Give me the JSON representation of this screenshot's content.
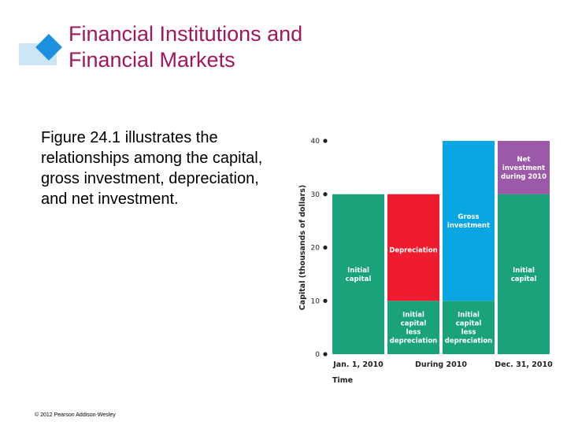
{
  "slide": {
    "title_lines": [
      "Financial Institutions and",
      "Financial Markets"
    ],
    "body_text": "Figure 24.1 illustrates the relationships among the capital, gross investment, depreciation, and net investment.",
    "footer": "© 2012 Pearson Addison-Wesley",
    "colors": {
      "title": "#a0175a",
      "accent_square": "#1e90e0",
      "accent_bar": "#cce6f6"
    }
  },
  "chart_data": {
    "type": "bar",
    "stacked": true,
    "categories": [
      "Jan. 1, 2010",
      "During 2010",
      "Dec. 31, 2010"
    ],
    "xlabel": "Time",
    "ylabel": "Capital (thousands of dollars)",
    "ylim": [
      0,
      40
    ],
    "yticks": [
      0,
      10,
      20,
      30,
      40
    ],
    "bars": [
      {
        "category": "Jan. 1, 2010",
        "segments": [
          {
            "label_lines": [
              "Initial",
              "capital"
            ],
            "from": 0,
            "to": 30,
            "color": "#1aa37a"
          }
        ]
      },
      {
        "category": "During 2010",
        "segments": [
          {
            "label_lines": [
              "Initial",
              "capital",
              "less",
              "depreciation"
            ],
            "from": 0,
            "to": 10,
            "color": "#1aa37a"
          },
          {
            "label_lines": [
              "Depreciation"
            ],
            "from": 10,
            "to": 30,
            "color": "#ee1c2e"
          }
        ]
      },
      {
        "category": "During 2010",
        "segments": [
          {
            "label_lines": [
              "Initial",
              "capital",
              "less",
              "depreciation"
            ],
            "from": 0,
            "to": 10,
            "color": "#1aa37a"
          },
          {
            "label_lines": [
              "Gross",
              "investment"
            ],
            "from": 10,
            "to": 40,
            "color": "#0aa5e3"
          }
        ]
      },
      {
        "category": "Dec. 31, 2010",
        "segments": [
          {
            "label_lines": [
              "Initial",
              "capital"
            ],
            "from": 0,
            "to": 30,
            "color": "#1aa37a"
          },
          {
            "label_lines": [
              "Net",
              "investment",
              "during 2010"
            ],
            "from": 30,
            "to": 40,
            "color": "#9b59a8"
          }
        ]
      }
    ]
  }
}
